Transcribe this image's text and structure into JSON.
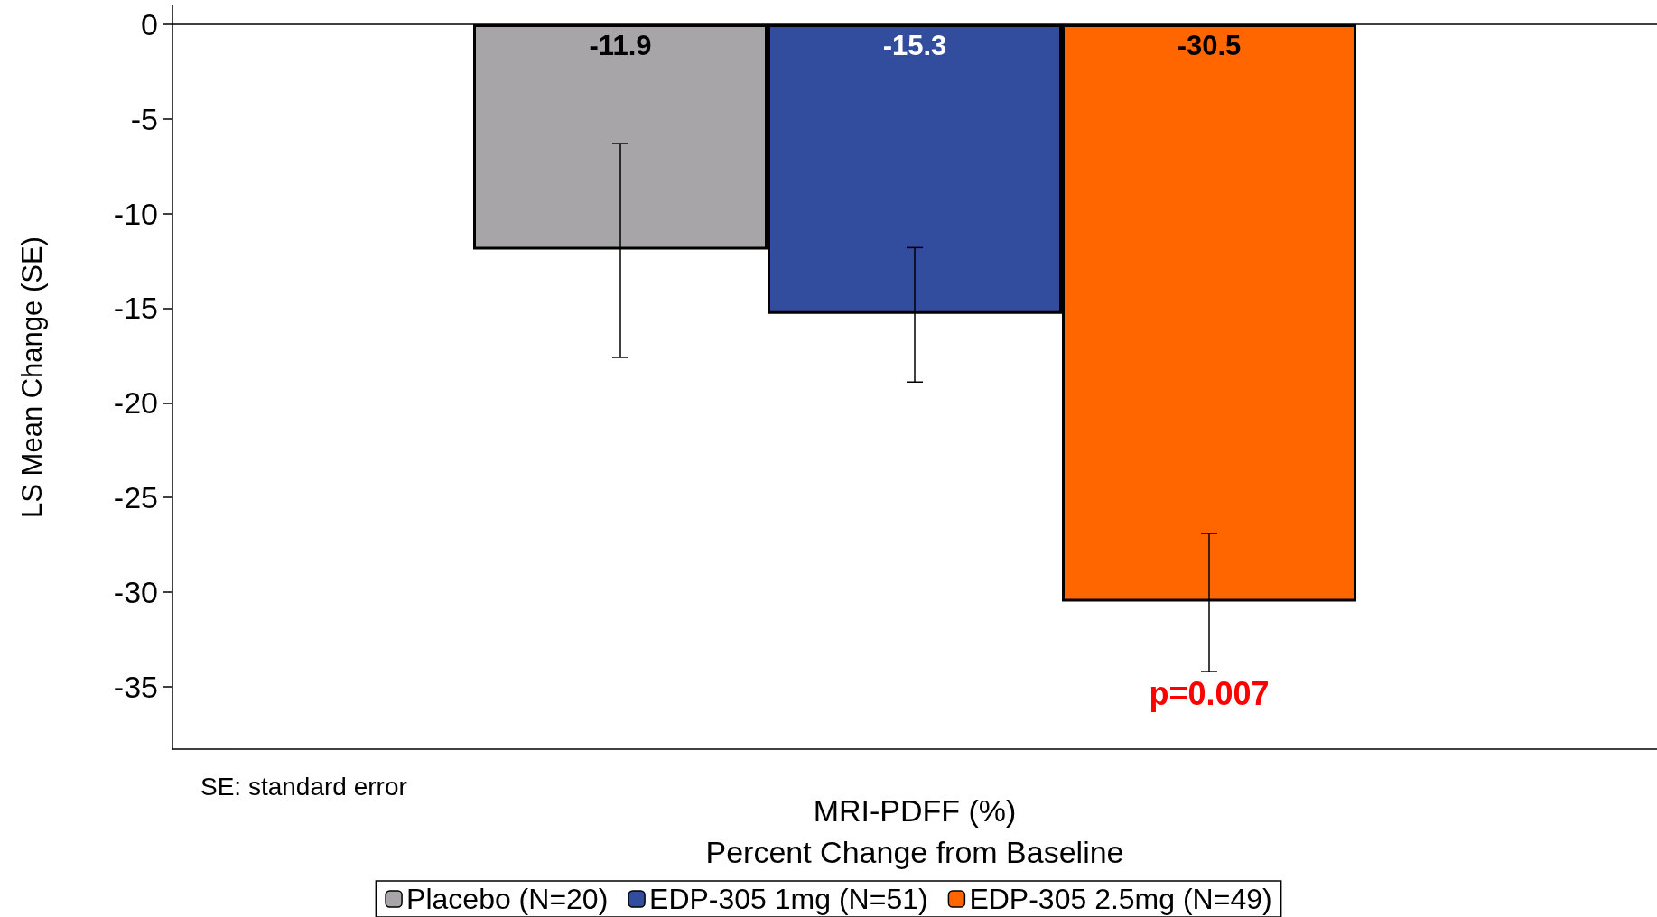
{
  "chart_data": {
    "type": "bar",
    "xlabel": "MRI-PDFF (%)\nPercent Change from Baseline",
    "ylabel": "LS Mean Change (SE)",
    "categories": [
      null
    ],
    "series": [
      {
        "name": "Placebo (N=20)",
        "color": "#a7a5a8",
        "values": [
          -11.9
        ],
        "errors": [
          [
            -17.6,
            -6.3
          ]
        ]
      },
      {
        "name": "EDP-305 1mg (N=51)",
        "color": "#334d9e",
        "values": [
          -15.3
        ],
        "errors": [
          [
            -18.9,
            -11.8
          ]
        ]
      },
      {
        "name": "EDP-305 2.5mg (N=49)",
        "color": "#ff6600",
        "values": [
          -30.5
        ],
        "errors": [
          [
            -34.2,
            -26.9
          ]
        ]
      }
    ],
    "ylim": [
      -38.3,
      1
    ],
    "yticks": [
      0,
      -5,
      -10,
      -15,
      -20,
      -25,
      -30,
      -35
    ],
    "data_labels": true,
    "legend": "bottom",
    "grid": false,
    "ref_lines": [
      {
        "axis": "y",
        "value": 0
      }
    ],
    "annotations": [
      "SE: standard error",
      "p=0.007"
    ]
  }
}
